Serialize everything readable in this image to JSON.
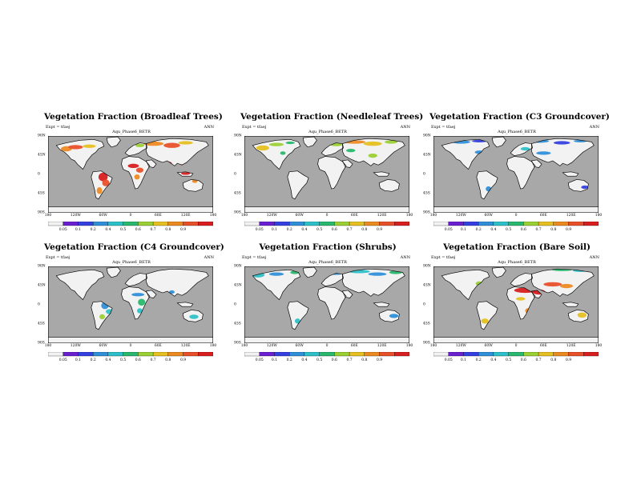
{
  "colorbar": {
    "colors": [
      "#f2f2f2",
      "#6a1fd0",
      "#3540e0",
      "#2f8fd8",
      "#2ec0c8",
      "#29b86e",
      "#9ad034",
      "#e6c020",
      "#ec8a22",
      "#e8502a",
      "#d81e1e"
    ],
    "labels": [
      "0.05",
      "0.1",
      "0.2",
      "0.4",
      "0.5",
      "0.6",
      "0.7",
      "0.8",
      "0.9"
    ]
  },
  "map_colors": {
    "ocean": "#a8a8a8",
    "land": "#f2f2f2",
    "coast": "#000000"
  },
  "lon_labels": [
    "180",
    "120W",
    "60W",
    "0",
    "60E",
    "120E",
    "180"
  ],
  "lat_labels": [
    "90N",
    "45N",
    "0",
    "45S",
    "90S"
  ],
  "panels": [
    {
      "title": "Vegetation Fraction (Broadleaf Trees)",
      "expt": "Expt = tfaej",
      "case": "Aqu_Phase6_BETR",
      "season": "ANN"
    },
    {
      "title": "Vegetation Fraction (Needleleaf Trees)",
      "expt": "Expt = tfaej",
      "case": "Aqu_Phase6_BETR",
      "season": "ANN"
    },
    {
      "title": "Vegetation Fraction (C3 Groundcover)",
      "expt": "Expt = tfaej",
      "case": "Aqu_Phase6_BETR",
      "season": "ANN"
    },
    {
      "title": "Vegetation Fraction (C4 Groundcover)",
      "expt": "Expt = tfaej",
      "case": "Aqu_Phase6_BETR",
      "season": "ANN"
    },
    {
      "title": "Vegetation Fraction (Shrubs)",
      "expt": "Expt = tfaej",
      "case": "Aqu_Phase6_BETR",
      "season": "ANN"
    },
    {
      "title": "Vegetation Fraction (Bare Soil)",
      "expt": "Expt = tfaej",
      "case": "Aqu_Phase6_BETR",
      "season": "ANN"
    }
  ]
}
